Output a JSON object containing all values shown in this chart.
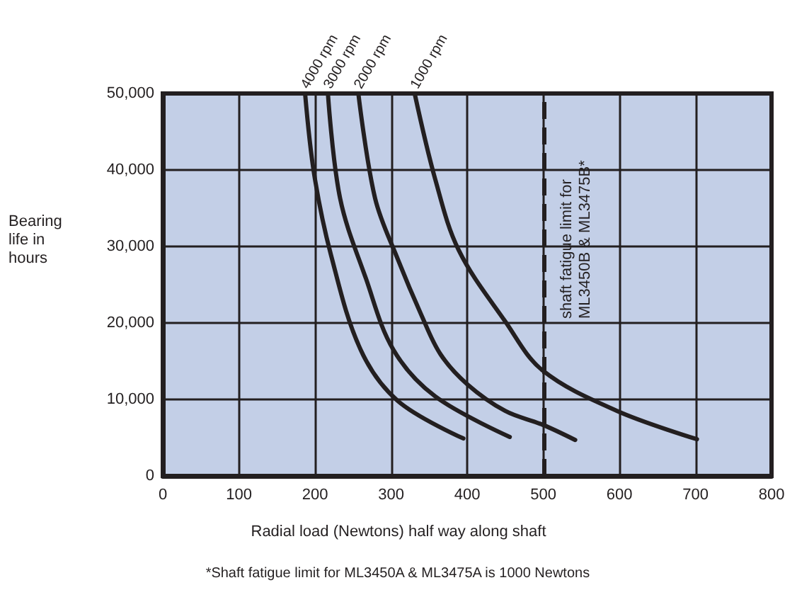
{
  "chart_data": {
    "type": "line",
    "xlabel": "Radial load (Newtons) half way along shaft",
    "ylabel": "Bearing\nlife in\nhours",
    "xlim": [
      0,
      800
    ],
    "xticks": [
      0,
      100,
      200,
      300,
      400,
      500,
      600,
      700,
      800
    ],
    "ylim": [
      0,
      50000
    ],
    "yticks": [
      0,
      {
        "value": 10000,
        "label": "10,000"
      },
      {
        "value": 20000,
        "label": "20,000"
      },
      {
        "value": 30000,
        "label": "30,000"
      },
      {
        "value": 40000,
        "label": "40,000"
      },
      {
        "value": 50000,
        "label": "50,000"
      }
    ],
    "grid": true,
    "legend": false,
    "marker": "none",
    "line_style": "solid",
    "series": [
      {
        "name": "4000 rpm",
        "color": "#231f20",
        "x": [
          187,
          199,
          221,
          260,
          309,
          395
        ],
        "values": [
          50000,
          39400,
          28900,
          16500,
          9800,
          4900
        ]
      },
      {
        "name": "3000 rpm",
        "color": "#231f20",
        "x": [
          217,
          233,
          267,
          303,
          358,
          456
        ],
        "values": [
          50000,
          36300,
          25800,
          16500,
          10400,
          5100
        ]
      },
      {
        "name": "2000 rpm",
        "color": "#231f20",
        "x": [
          257,
          279,
          309,
          340,
          365,
          400,
          450,
          499,
          542
        ],
        "values": [
          50000,
          36300,
          28300,
          21000,
          15900,
          12000,
          8500,
          6700,
          4700
        ]
      },
      {
        "name": "1000 rpm",
        "color": "#231f20",
        "x": [
          331,
          358,
          389,
          450,
          499,
          597,
          702
        ],
        "values": [
          50000,
          38800,
          29500,
          20200,
          13800,
          8500,
          4800
        ]
      }
    ],
    "ref_lines": [
      {
        "axis": "x",
        "value": 500,
        "label": "shaft fatigue limit for\nML3450B & ML3475B*",
        "color": "#231f20",
        "line_style": "dashed"
      }
    ],
    "annotations": [
      "*Shaft fatigue limit for ML3450A & ML3475A is 1000 Newtons"
    ]
  }
}
